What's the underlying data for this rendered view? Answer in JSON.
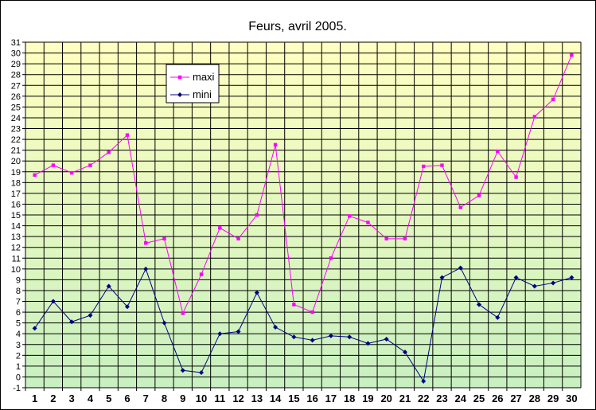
{
  "chart_data": {
    "type": "line",
    "title": "Feurs, avril 2005.",
    "xlabel": "",
    "ylabel": "",
    "categories": [
      "1",
      "2",
      "3",
      "4",
      "5",
      "6",
      "7",
      "8",
      "9",
      "10",
      "11",
      "12",
      "13",
      "14",
      "15",
      "16",
      "17",
      "18",
      "19",
      "20",
      "21",
      "22",
      "23",
      "24",
      "25",
      "26",
      "27",
      "28",
      "29",
      "30"
    ],
    "ylim": [
      -1,
      31
    ],
    "yticks": [
      "-1",
      "0",
      "1",
      "2",
      "3",
      "4",
      "5",
      "6",
      "7",
      "8",
      "9",
      "10",
      "11",
      "12",
      "13",
      "14",
      "15",
      "16",
      "17",
      "18",
      "19",
      "20",
      "21",
      "22",
      "23",
      "24",
      "25",
      "26",
      "27",
      "28",
      "29",
      "30",
      "31"
    ],
    "grid": true,
    "legend_position": "top-left",
    "background_gradient": [
      "#ffffc0",
      "#c8f0c0"
    ],
    "series": [
      {
        "name": "maxi",
        "color": "#ff00ff",
        "marker": "square",
        "values": [
          18.7,
          19.6,
          18.9,
          19.6,
          20.8,
          22.4,
          12.4,
          12.8,
          5.9,
          9.5,
          13.8,
          12.8,
          15.0,
          21.5,
          6.7,
          6.0,
          11.0,
          14.9,
          14.3,
          12.8,
          12.8,
          19.5,
          19.6,
          15.7,
          16.8,
          20.9,
          18.5,
          24.1,
          25.7,
          29.8
        ]
      },
      {
        "name": "mini",
        "color": "#000080",
        "marker": "diamond",
        "values": [
          4.5,
          7.0,
          5.1,
          5.7,
          8.4,
          6.5,
          10.0,
          5.0,
          0.6,
          0.4,
          4.0,
          4.2,
          7.8,
          4.6,
          3.7,
          3.4,
          3.8,
          3.7,
          3.1,
          3.5,
          2.3,
          -0.4,
          9.2,
          10.1,
          6.7,
          5.5,
          9.2,
          8.4,
          8.7,
          9.2
        ]
      }
    ]
  }
}
